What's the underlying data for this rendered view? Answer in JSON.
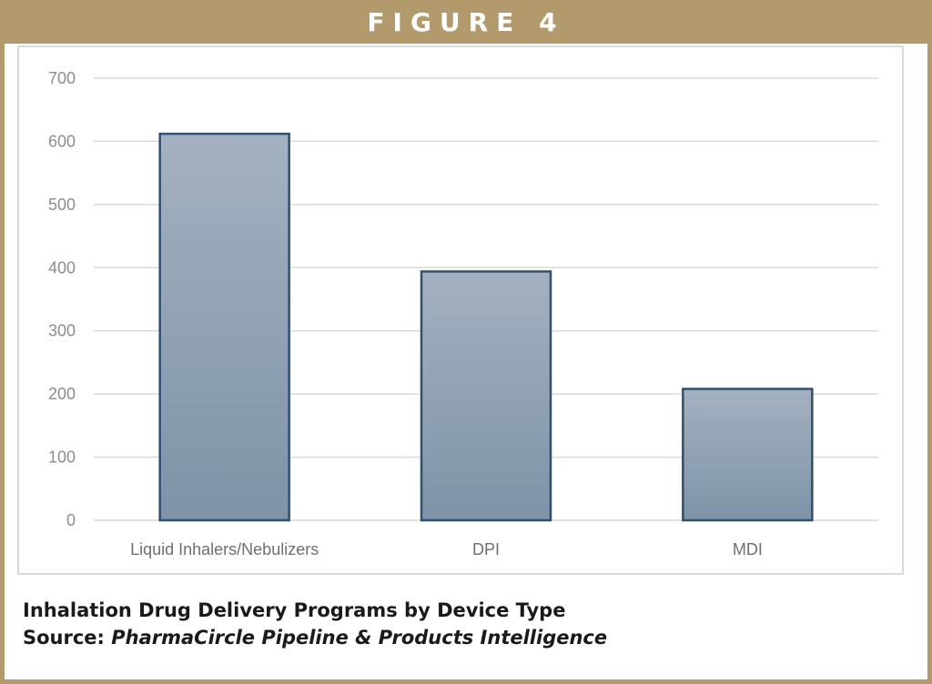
{
  "header": {
    "title": "FIGURE 4"
  },
  "caption": {
    "line1": "Inhalation Drug Delivery Programs by Device Type",
    "source_prefix": "Source: ",
    "source_text": "PharmaCircle Pipeline & Products Intelligence"
  },
  "colors": {
    "frame": "#b39a6c",
    "bar_top": "#a4b1c0",
    "bar_bottom": "#7e93a8",
    "bar_stroke": "#2f506f",
    "grid": "#d9d9d9"
  },
  "chart_data": {
    "type": "bar",
    "categories": [
      "Liquid Inhalers/Nebulizers",
      "DPI",
      "MDI"
    ],
    "values": [
      612,
      394,
      208
    ],
    "yticks": [
      0,
      100,
      200,
      300,
      400,
      500,
      600,
      700
    ],
    "ylim": [
      0,
      700
    ],
    "grid": true,
    "legend": "none"
  }
}
